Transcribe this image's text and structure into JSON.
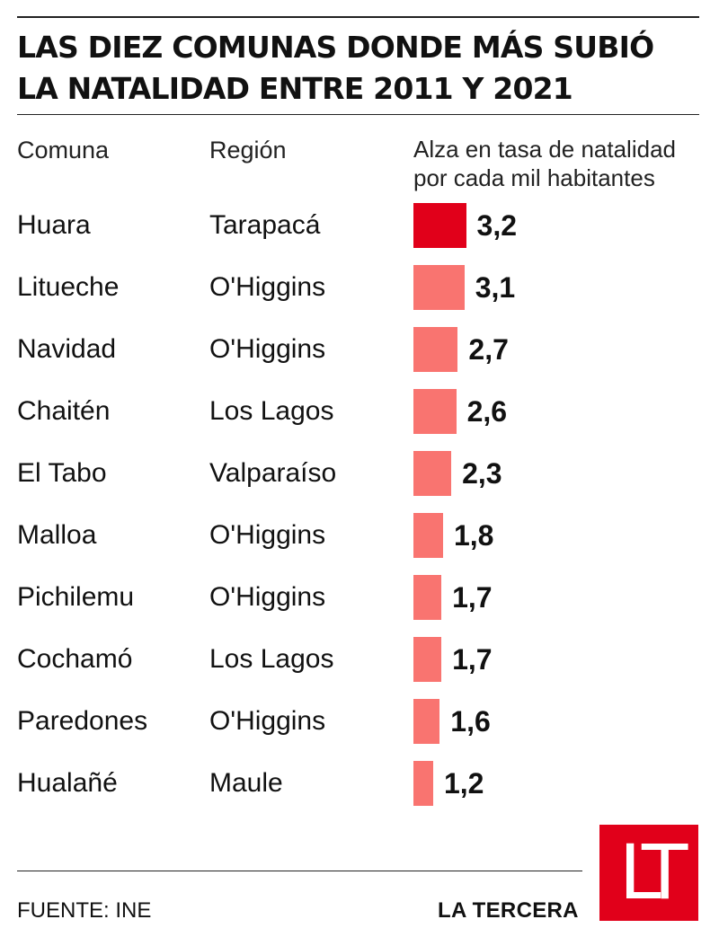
{
  "title": {
    "line1": "LAS DIEZ COMUNAS DONDE MÁS SUBIÓ",
    "line2": "LA NATALIDAD ENTRE 2011 Y 2021"
  },
  "headers": {
    "comuna": "Comuna",
    "region": "Región",
    "value_line1": "Alza en tasa de natalidad",
    "value_line2": "por cada mil habitantes"
  },
  "colors": {
    "highlight": "#e1001a",
    "bar": "#f97470",
    "logo_bg": "#e1001a"
  },
  "chart_data": {
    "type": "bar",
    "orientation": "horizontal",
    "title": "LAS DIEZ COMUNAS DONDE MÁS SUBIÓ LA NATALIDAD ENTRE 2011 Y 2021",
    "xlabel": "Alza en tasa de natalidad por cada mil habitantes",
    "ylabel": "",
    "categories": [
      "Huara",
      "Litueche",
      "Navidad",
      "Chaitén",
      "El Tabo",
      "Malloa",
      "Pichilemu",
      "Cochamó",
      "Paredones",
      "Hualañé"
    ],
    "regions": [
      "Tarapacá",
      "O'Higgins",
      "O'Higgins",
      "Los Lagos",
      "Valparaíso",
      "O'Higgins",
      "O'Higgins",
      "Los Lagos",
      "O'Higgins",
      "Maule"
    ],
    "values": [
      3.2,
      3.1,
      2.7,
      2.6,
      2.3,
      1.8,
      1.7,
      1.7,
      1.6,
      1.2
    ],
    "value_labels": [
      "3,2",
      "3,1",
      "2,7",
      "2,6",
      "2,3",
      "1,8",
      "1,7",
      "1,7",
      "1,6",
      "1,2"
    ],
    "highlight_index": 0,
    "grid": false,
    "legend": "none"
  },
  "footer": {
    "source": "FUENTE: INE",
    "brand": "LA TERCERA",
    "logo_text": "LT"
  }
}
